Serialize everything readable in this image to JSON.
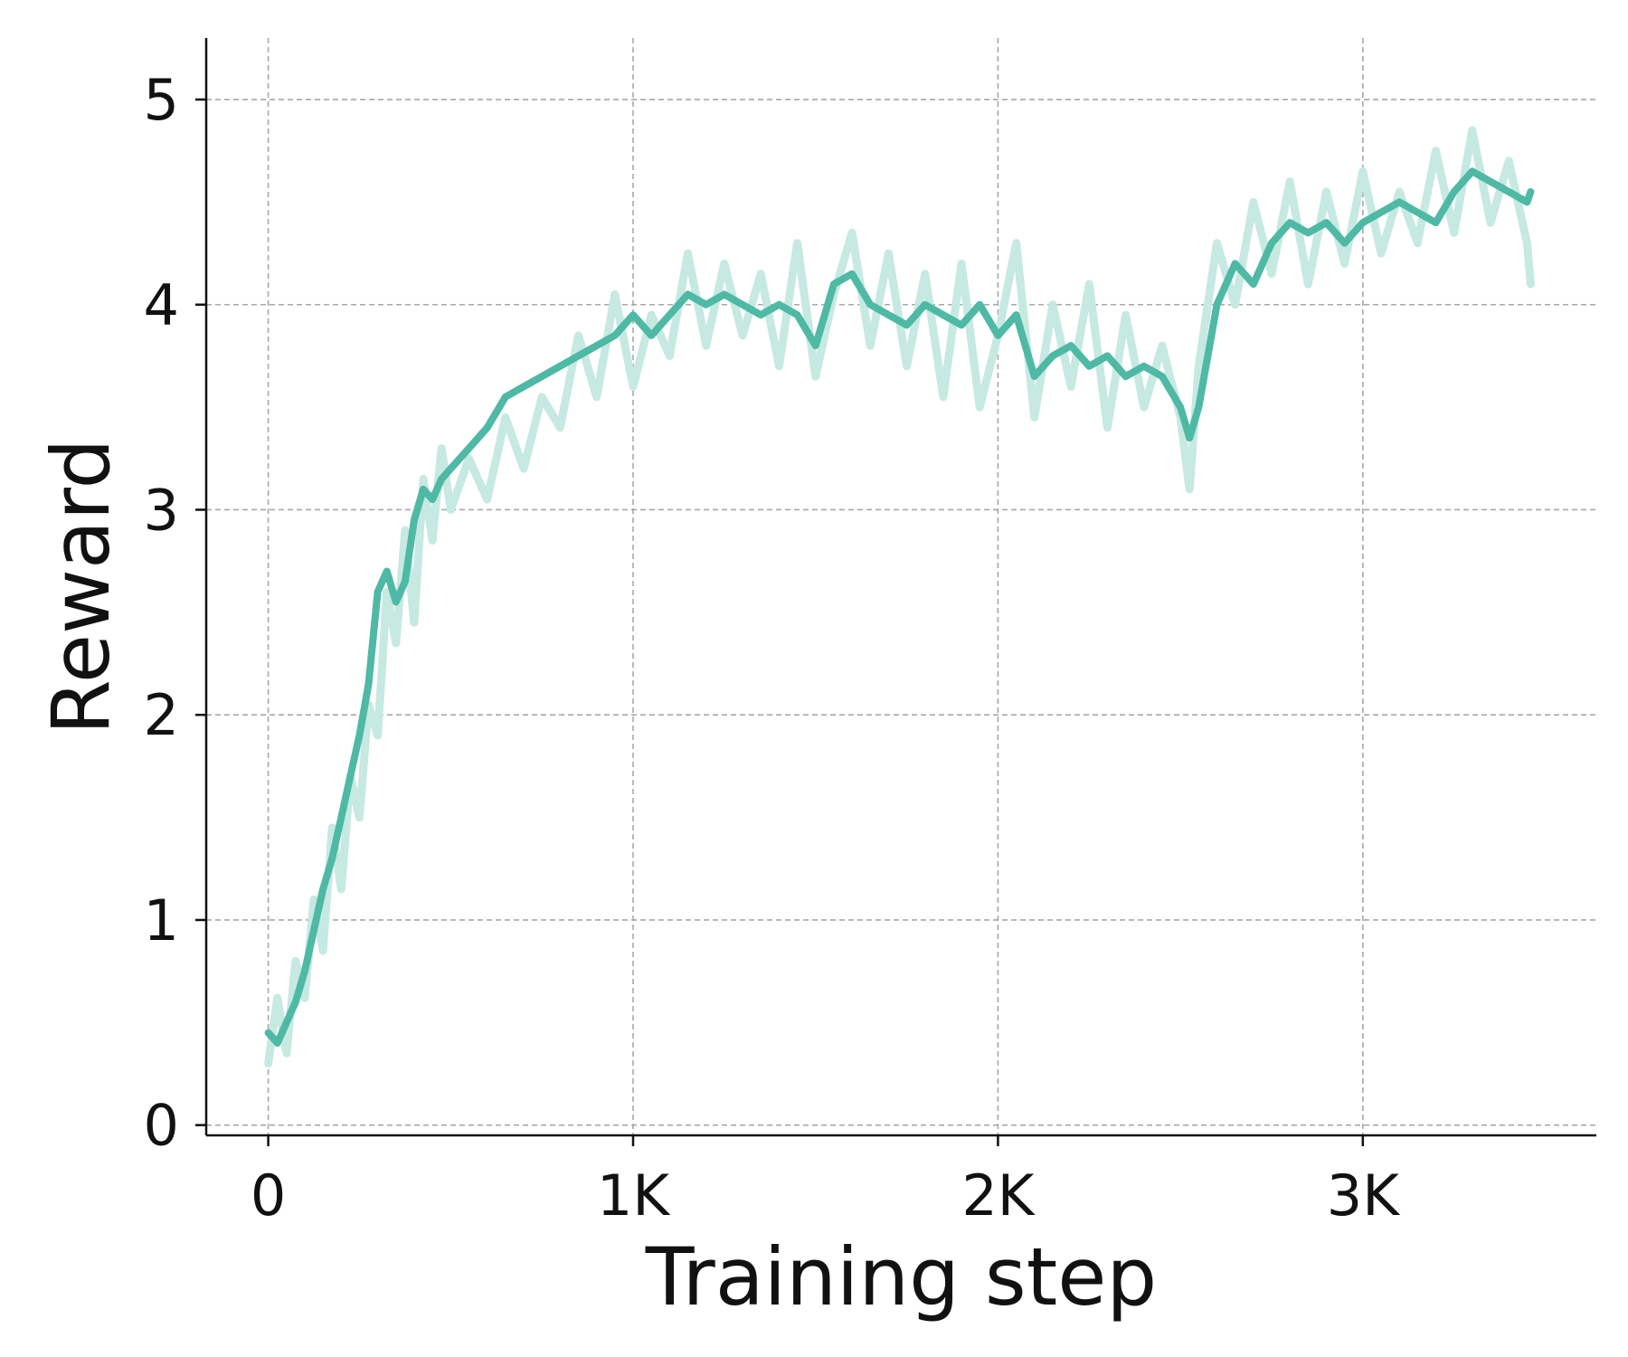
{
  "chart_data": {
    "type": "line",
    "xlabel": "Training step",
    "ylabel": "Reward",
    "xlim": [
      -170,
      3640
    ],
    "ylim": [
      -0.05,
      5.3
    ],
    "xticks": [
      {
        "value": 0,
        "label": "0"
      },
      {
        "value": 1000,
        "label": "1K"
      },
      {
        "value": 2000,
        "label": "2K"
      },
      {
        "value": 3000,
        "label": "3K"
      }
    ],
    "yticks": [
      {
        "value": 0,
        "label": "0"
      },
      {
        "value": 1,
        "label": "1"
      },
      {
        "value": 2,
        "label": "2"
      },
      {
        "value": 3,
        "label": "3"
      },
      {
        "value": 4,
        "label": "4"
      },
      {
        "value": 5,
        "label": "5"
      }
    ],
    "grid": true,
    "series": [
      {
        "kind": "raw",
        "color": "#c6e9e1",
        "x": [
          0,
          25,
          50,
          75,
          100,
          125,
          150,
          175,
          200,
          225,
          250,
          275,
          300,
          325,
          350,
          375,
          400,
          425,
          450,
          475,
          500,
          550,
          600,
          650,
          700,
          750,
          800,
          850,
          900,
          950,
          1000,
          1050,
          1100,
          1150,
          1200,
          1250,
          1300,
          1350,
          1400,
          1450,
          1500,
          1550,
          1600,
          1650,
          1700,
          1750,
          1800,
          1850,
          1900,
          1950,
          2000,
          2050,
          2100,
          2150,
          2200,
          2250,
          2300,
          2350,
          2400,
          2450,
          2500,
          2525,
          2550,
          2600,
          2650,
          2700,
          2750,
          2800,
          2850,
          2900,
          2950,
          3000,
          3050,
          3100,
          3150,
          3200,
          3250,
          3300,
          3350,
          3400,
          3450,
          3460
        ],
        "y": [
          0.3,
          0.62,
          0.35,
          0.8,
          0.62,
          1.1,
          0.85,
          1.45,
          1.15,
          1.7,
          1.5,
          2.05,
          1.9,
          2.6,
          2.35,
          2.9,
          2.45,
          3.15,
          2.85,
          3.3,
          3.0,
          3.25,
          3.05,
          3.45,
          3.2,
          3.55,
          3.4,
          3.85,
          3.55,
          4.05,
          3.6,
          3.95,
          3.75,
          4.25,
          3.8,
          4.2,
          3.85,
          4.15,
          3.7,
          4.3,
          3.65,
          4.05,
          4.35,
          3.8,
          4.25,
          3.7,
          4.15,
          3.55,
          4.2,
          3.5,
          3.85,
          4.3,
          3.45,
          4.0,
          3.6,
          4.1,
          3.4,
          3.95,
          3.5,
          3.8,
          3.45,
          3.1,
          3.7,
          4.3,
          4.0,
          4.5,
          4.15,
          4.6,
          4.1,
          4.55,
          4.2,
          4.65,
          4.25,
          4.55,
          4.3,
          4.75,
          4.35,
          4.85,
          4.4,
          4.7,
          4.3,
          4.1
        ]
      },
      {
        "kind": "smoothed",
        "color": "#4eb9a4",
        "x": [
          0,
          25,
          50,
          75,
          100,
          125,
          150,
          175,
          200,
          225,
          250,
          275,
          300,
          325,
          350,
          375,
          400,
          425,
          450,
          475,
          500,
          550,
          600,
          650,
          700,
          750,
          800,
          850,
          900,
          950,
          1000,
          1050,
          1100,
          1150,
          1200,
          1250,
          1300,
          1350,
          1400,
          1450,
          1500,
          1550,
          1600,
          1650,
          1700,
          1750,
          1800,
          1850,
          1900,
          1950,
          2000,
          2050,
          2100,
          2150,
          2200,
          2250,
          2300,
          2350,
          2400,
          2450,
          2500,
          2525,
          2550,
          2600,
          2650,
          2700,
          2750,
          2800,
          2850,
          2900,
          2950,
          3000,
          3050,
          3100,
          3150,
          3200,
          3250,
          3300,
          3350,
          3400,
          3450,
          3460
        ],
        "y": [
          0.45,
          0.4,
          0.5,
          0.6,
          0.75,
          0.95,
          1.15,
          1.3,
          1.5,
          1.7,
          1.9,
          2.15,
          2.6,
          2.7,
          2.55,
          2.65,
          2.95,
          3.1,
          3.05,
          3.15,
          3.2,
          3.3,
          3.4,
          3.55,
          3.6,
          3.65,
          3.7,
          3.75,
          3.8,
          3.85,
          3.95,
          3.85,
          3.95,
          4.05,
          4.0,
          4.05,
          4.0,
          3.95,
          4.0,
          3.95,
          3.8,
          4.1,
          4.15,
          4.0,
          3.95,
          3.9,
          4.0,
          3.95,
          3.9,
          4.0,
          3.85,
          3.95,
          3.65,
          3.75,
          3.8,
          3.7,
          3.75,
          3.65,
          3.7,
          3.65,
          3.5,
          3.35,
          3.5,
          4.0,
          4.2,
          4.1,
          4.3,
          4.4,
          4.35,
          4.4,
          4.3,
          4.4,
          4.45,
          4.5,
          4.45,
          4.4,
          4.55,
          4.65,
          4.6,
          4.55,
          4.5,
          4.55
        ]
      }
    ]
  }
}
